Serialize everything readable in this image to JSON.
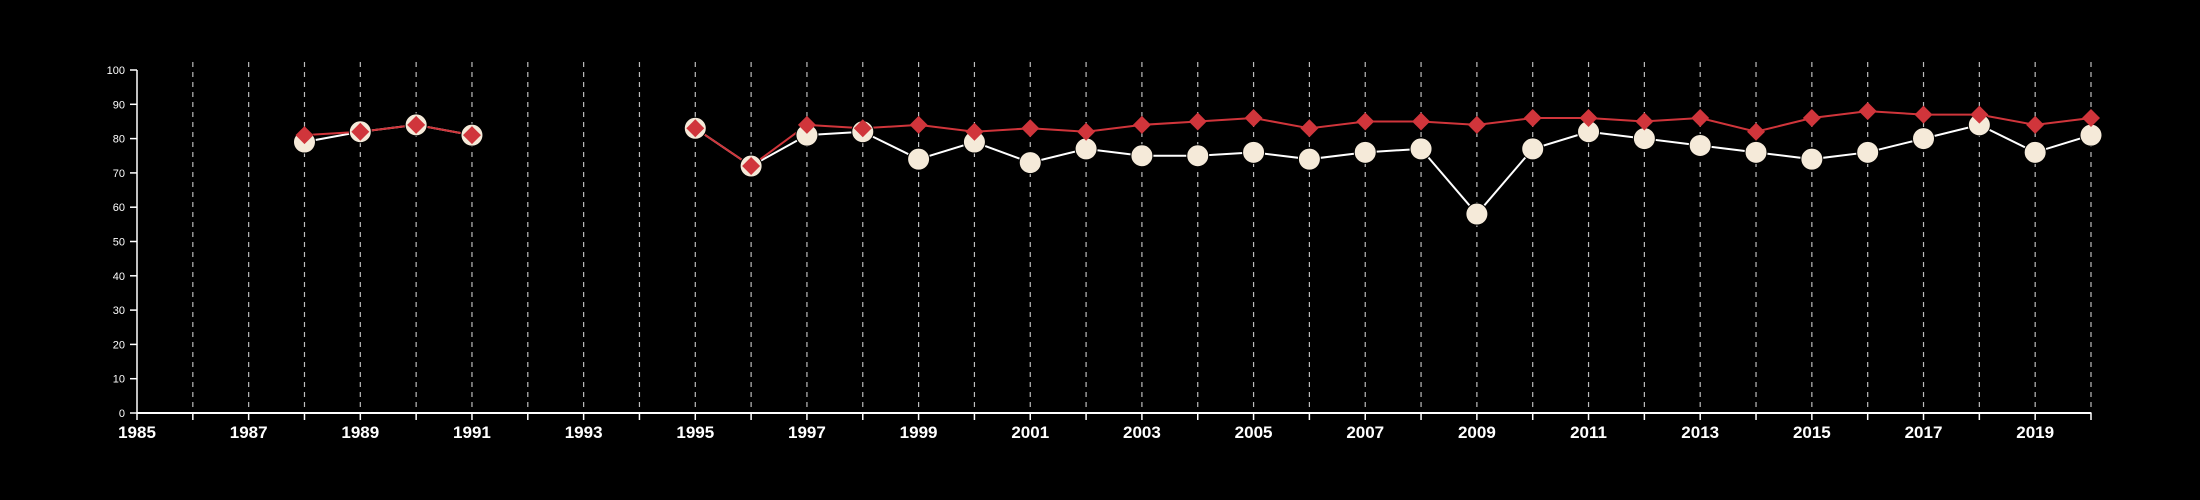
{
  "chart_data": {
    "type": "line",
    "title": "",
    "xlabel": "",
    "ylabel": "",
    "xlim": [
      1985,
      2020
    ],
    "ylim": [
      0,
      100
    ],
    "grid": "vertical-dashed",
    "yticks": [
      "0",
      "10",
      "20",
      "30",
      "40",
      "50",
      "60",
      "70",
      "80",
      "90",
      "100"
    ],
    "xticks": [
      "1985",
      "1987",
      "1989",
      "1991",
      "1993",
      "1995",
      "1997",
      "1999",
      "2001",
      "2003",
      "2005",
      "2007",
      "2009",
      "2011",
      "2013",
      "2015",
      "2017",
      "2019"
    ],
    "x": [
      1985,
      1986,
      1987,
      1988,
      1989,
      1990,
      1991,
      1992,
      1993,
      1994,
      1995,
      1996,
      1997,
      1998,
      1999,
      2000,
      2001,
      2002,
      2003,
      2004,
      2005,
      2006,
      2007,
      2008,
      2009,
      2010,
      2011,
      2012,
      2013,
      2014,
      2015,
      2016,
      2017,
      2018,
      2019,
      2020
    ],
    "series": [
      {
        "marker": "circle",
        "color": "#ffffff",
        "fill": "#f5ead9",
        "values": [
          null,
          null,
          null,
          79,
          82,
          84,
          81,
          null,
          null,
          null,
          83,
          72,
          81,
          82,
          74,
          79,
          73,
          77,
          75,
          75,
          76,
          74,
          76,
          77,
          58,
          77,
          82,
          80,
          78,
          76,
          74,
          76,
          80,
          84,
          76,
          81
        ]
      },
      {
        "marker": "diamond",
        "color": "#d0353b",
        "values": [
          null,
          null,
          null,
          81,
          82,
          84,
          81,
          null,
          null,
          null,
          83,
          72,
          84,
          83,
          84,
          82,
          83,
          82,
          84,
          85,
          86,
          83,
          85,
          85,
          84,
          86,
          86,
          85,
          86,
          82,
          86,
          88,
          87,
          87,
          84,
          86
        ]
      }
    ]
  }
}
